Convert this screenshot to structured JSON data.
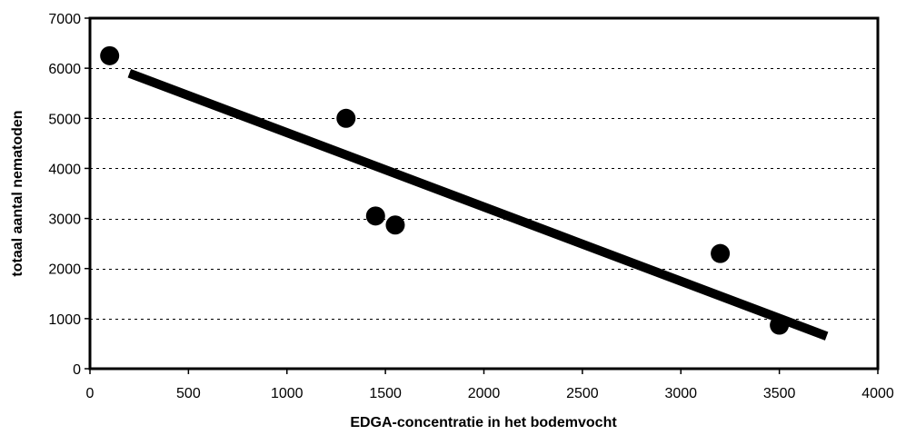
{
  "chart_data": {
    "type": "scatter",
    "title": "",
    "xlabel": "EDGA-concentratie in het bodemvocht",
    "ylabel": "totaal aantal nematoden",
    "xlim": [
      0,
      4000
    ],
    "ylim": [
      0,
      7000
    ],
    "xticks": [
      0,
      500,
      1000,
      1500,
      2000,
      2500,
      3000,
      3500,
      4000
    ],
    "yticks": [
      0,
      1000,
      2000,
      3000,
      4000,
      5000,
      6000,
      7000
    ],
    "xtick_labels": [
      "0",
      "500",
      "1000",
      "1500",
      "2000",
      "2500",
      "3000",
      "3500",
      "4000"
    ],
    "ytick_labels": [
      "0",
      "1000",
      "2000",
      "3000",
      "4000",
      "5000",
      "6000",
      "7000"
    ],
    "grid": "horizontal-dashed",
    "legend": "none",
    "series": [
      {
        "type": "scatter",
        "color": "#000000",
        "points": [
          {
            "x": 100,
            "y": 6250
          },
          {
            "x": 1300,
            "y": 5000
          },
          {
            "x": 1450,
            "y": 3050
          },
          {
            "x": 1550,
            "y": 2870
          },
          {
            "x": 3200,
            "y": 2300
          },
          {
            "x": 3500,
            "y": 870
          }
        ]
      }
    ],
    "trendline": {
      "type": "linear",
      "color": "#000000",
      "from": {
        "x": 200,
        "y": 5900
      },
      "to": {
        "x": 3740,
        "y": 650
      }
    }
  }
}
